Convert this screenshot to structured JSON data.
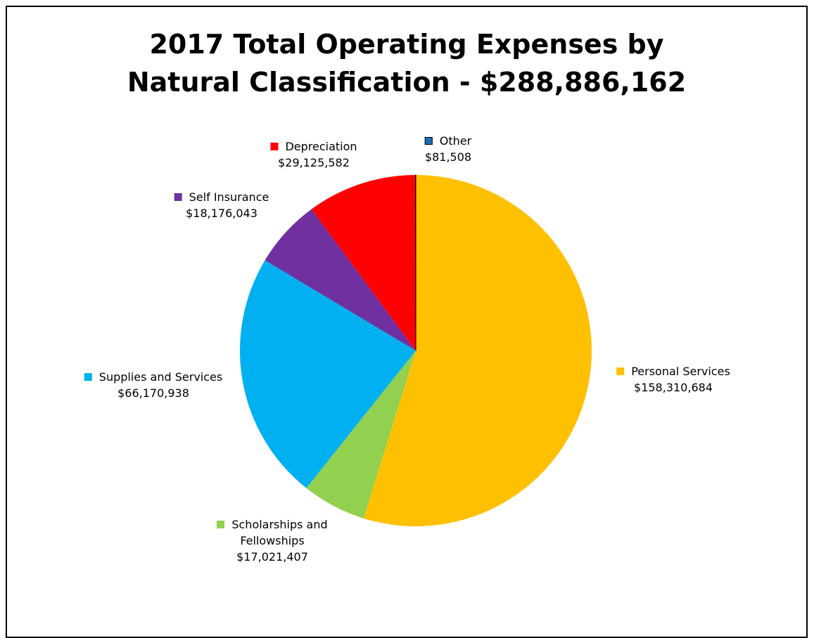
{
  "chart_data": {
    "type": "pie",
    "title": "2017 Total Operating Expenses by Natural Classification - $288,886,162",
    "categories": [
      "Personal Services",
      "Scholarships and Fellowships",
      "Supplies and Services",
      "Self Insurance",
      "Depreciation",
      "Other"
    ],
    "values": [
      158310684,
      17021407,
      66170938,
      18176043,
      29125582,
      81508
    ],
    "value_labels": [
      "$158,310,684",
      "$17,021,407",
      "$66,170,938",
      "$18,176,043",
      "$29,125,582",
      "$81,508"
    ],
    "colors": [
      "#ffc000",
      "#92d050",
      "#00b0f0",
      "#7030a0",
      "#ff0000",
      "#1f6fb5"
    ]
  }
}
